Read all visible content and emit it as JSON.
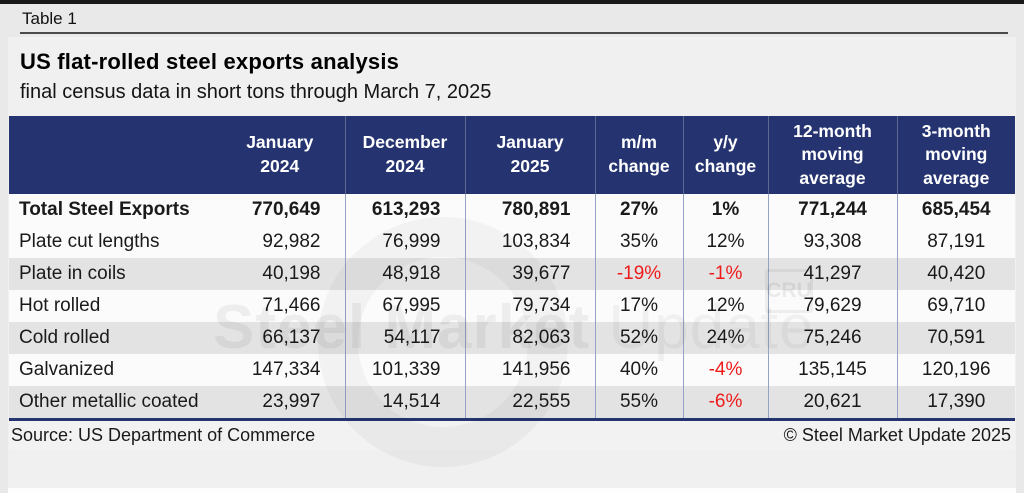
{
  "page": {
    "table_label": "Table 1",
    "title": "US flat-rolled steel exports analysis",
    "subtitle": "final census data in short tons through March 7, 2025"
  },
  "chart_data": {
    "type": "table",
    "title": "US flat-rolled steel exports analysis",
    "subtitle": "final census data in short tons through March 7, 2025",
    "columns": [
      "",
      "January\n2024",
      "December\n2024",
      "January\n2025",
      "m/m\nchange",
      "y/y\nchange",
      "12-month\nmoving\naverage",
      "3-month\nmoving\naverage"
    ],
    "rows": [
      {
        "label": "Total Steel Exports",
        "bold": true,
        "values": [
          "770,649",
          "613,293",
          "780,891",
          "27%",
          "1%",
          "771,244",
          "685,454"
        ]
      },
      {
        "label": "Plate cut lengths",
        "bold": false,
        "values": [
          "92,982",
          "76,999",
          "103,834",
          "35%",
          "12%",
          "93,308",
          "87,191"
        ]
      },
      {
        "label": "Plate in coils",
        "bold": false,
        "values": [
          "40,198",
          "48,918",
          "39,677",
          "-19%",
          "-1%",
          "41,297",
          "40,420"
        ]
      },
      {
        "label": "Hot rolled",
        "bold": false,
        "values": [
          "71,466",
          "67,995",
          "79,734",
          "17%",
          "12%",
          "79,629",
          "69,710"
        ]
      },
      {
        "label": "Cold rolled",
        "bold": false,
        "values": [
          "66,137",
          "54,117",
          "82,063",
          "52%",
          "24%",
          "75,246",
          "70,591"
        ]
      },
      {
        "label": "Galvanized",
        "bold": false,
        "values": [
          "147,334",
          "101,339",
          "141,956",
          "40%",
          "-4%",
          "135,145",
          "120,196"
        ]
      },
      {
        "label": "Other metallic coated",
        "bold": false,
        "values": [
          "23,997",
          "14,514",
          "22,555",
          "55%",
          "-6%",
          "20,621",
          "17,390"
        ]
      }
    ]
  },
  "footer": {
    "source": "Source: US Department of Commerce",
    "copyright": "© Steel Market Update 2025"
  },
  "watermark": {
    "text_strong": "Steel Market",
    "text_light": " Update",
    "cru": "CRU"
  },
  "colors": {
    "header_navy": "#253471",
    "negative_red": "#ee1b1b",
    "page_background": "#e9e9e9",
    "stripe_gray": "#e3e3e3"
  }
}
